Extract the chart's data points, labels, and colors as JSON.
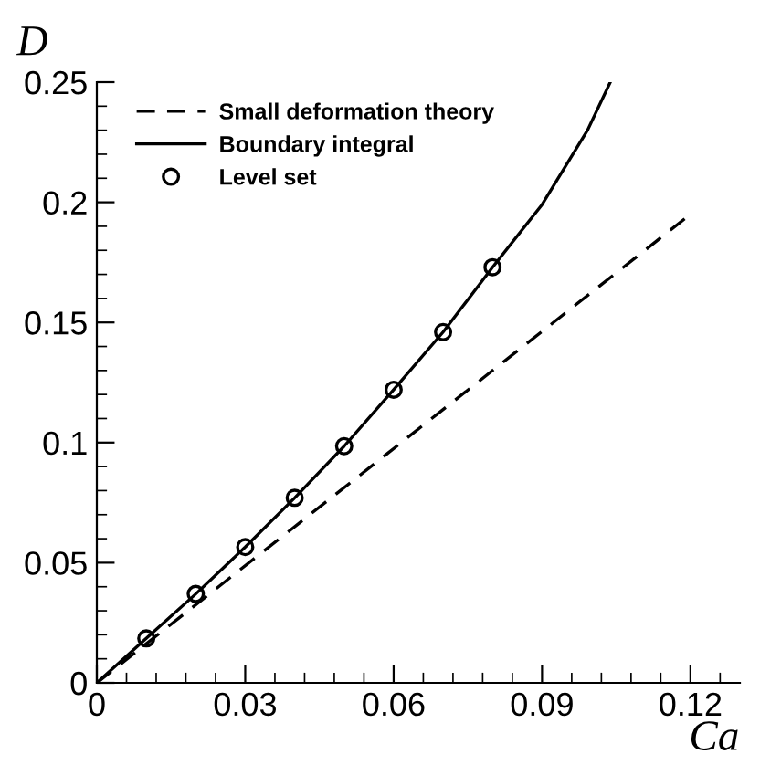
{
  "chart_data": {
    "type": "line",
    "xlabel": "Ca",
    "ylabel": "D",
    "series": [
      {
        "name": "Small deformation theory",
        "color": "#000000",
        "line_style": "dashed",
        "marker": "none",
        "x": [
          0,
          0.12
        ],
        "values": [
          0,
          0.195
        ]
      },
      {
        "name": "Boundary integral",
        "color": "#000000",
        "line_style": "solid",
        "marker": "none",
        "x": [
          0,
          0.01,
          0.02,
          0.03,
          0.04,
          0.05,
          0.06,
          0.07,
          0.08,
          0.09,
          0.0992,
          0.1038
        ],
        "values": [
          0,
          0.0185,
          0.037,
          0.0565,
          0.077,
          0.0985,
          0.122,
          0.146,
          0.173,
          0.199,
          0.23,
          0.25
        ]
      },
      {
        "name": "Level set",
        "color": "#000000",
        "type": "scatter",
        "marker": "circle",
        "x": [
          0.01,
          0.02,
          0.03,
          0.04,
          0.05,
          0.06,
          0.07,
          0.08
        ],
        "values": [
          0.0185,
          0.037,
          0.0565,
          0.077,
          0.0985,
          0.122,
          0.146,
          0.173
        ]
      }
    ],
    "xlim": [
      0,
      0.13
    ],
    "ylim": [
      0,
      0.25
    ],
    "xticks": [
      0,
      0.03,
      0.06,
      0.09,
      0.12
    ],
    "yticks": [
      0,
      0.05,
      0.1,
      0.15,
      0.2,
      0.25
    ],
    "legend": "top left",
    "grid": false
  }
}
